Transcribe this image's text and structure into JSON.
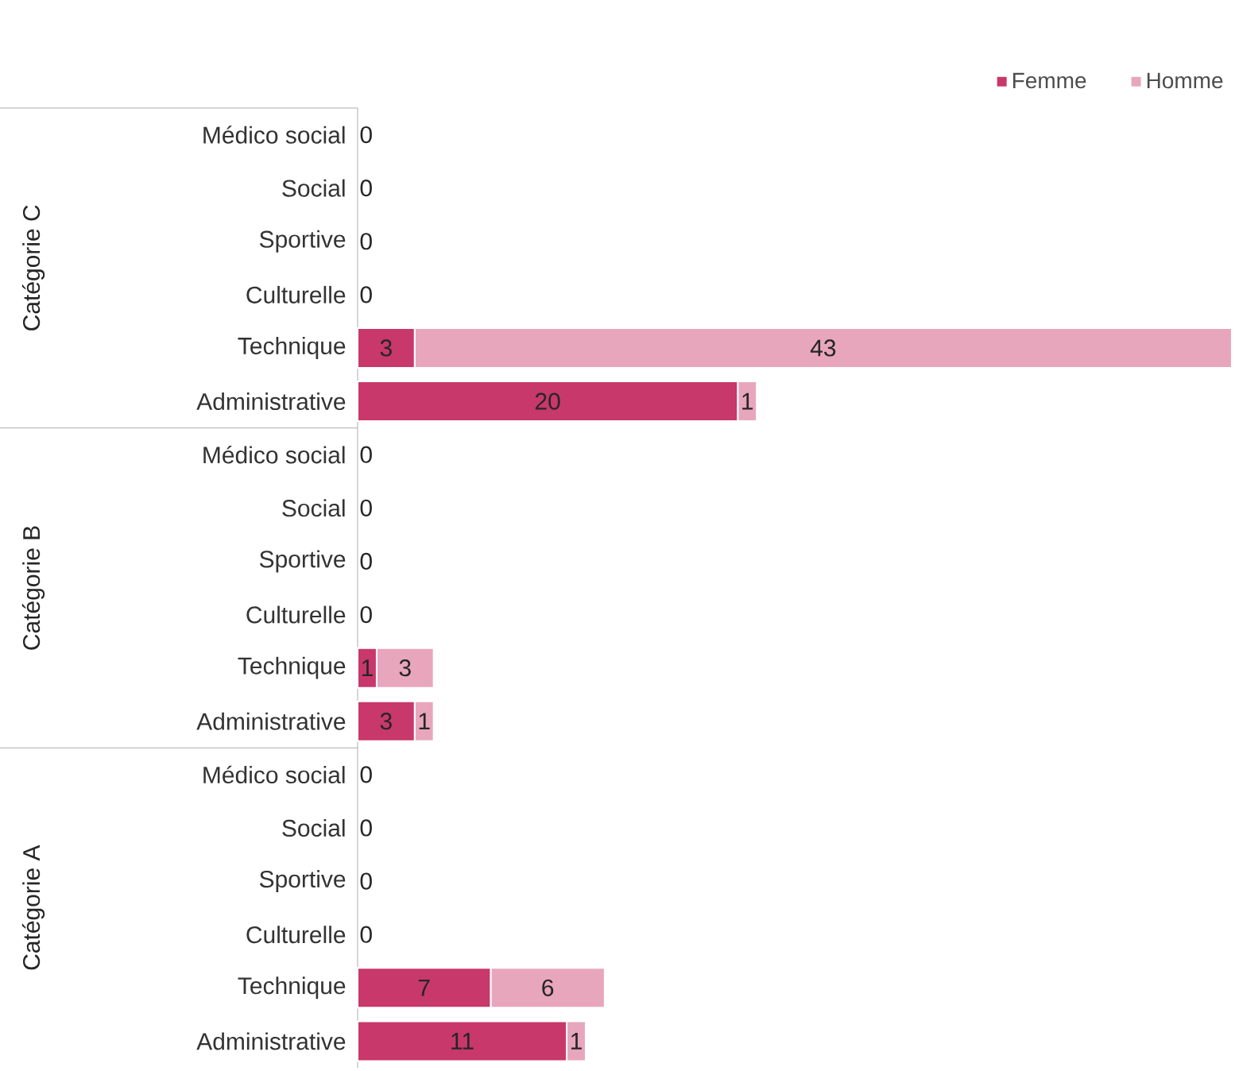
{
  "chart_data": {
    "type": "bar",
    "orientation": "horizontal",
    "stacked": true,
    "legend": "top right",
    "categories": [
      "Médico social",
      "Social",
      "Sportive",
      "Culturelle",
      "Technique",
      "Administrative",
      "Médico social",
      "Social",
      "Sportive",
      "Culturelle",
      "Technique",
      "Administrative",
      "Médico social",
      "Social",
      "Sportive",
      "Culturelle",
      "Technique",
      "Administrative"
    ],
    "annotations": [
      "Catégorie C",
      "Catégorie B",
      "Catégorie A"
    ],
    "series": [
      {
        "name": "Femme",
        "color": "#c8386a",
        "values": [
          0,
          0,
          0,
          0,
          3,
          20,
          0,
          0,
          0,
          0,
          1,
          3,
          0,
          0,
          0,
          0,
          7,
          11
        ],
        "value_labels": [
          "0",
          "0",
          "0",
          "0",
          "3",
          "20",
          "0",
          "0",
          "0",
          "0",
          "1",
          "3",
          "0",
          "0",
          "0",
          "0",
          "7",
          "11"
        ]
      },
      {
        "name": "Homme",
        "color": "#e8a6bd",
        "values": [
          null,
          null,
          null,
          null,
          43,
          1,
          null,
          null,
          null,
          null,
          3,
          1,
          null,
          null,
          null,
          null,
          6,
          1
        ],
        "value_labels": [
          null,
          null,
          null,
          null,
          "43",
          "1",
          null,
          null,
          null,
          null,
          "3",
          "1",
          null,
          null,
          null,
          null,
          "6",
          "1"
        ]
      }
    ]
  }
}
